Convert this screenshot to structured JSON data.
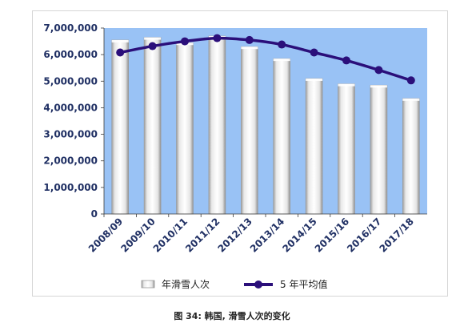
{
  "caption": "图 34: 韩国, 滑雪人次的变化",
  "colors": {
    "plot_background": "#99c2f5",
    "bar": "#f2f2f2",
    "bar_edge": "#9a9a9a",
    "line": "#2b0f7a"
  },
  "chart_data": {
    "type": "bar",
    "categories": [
      "2008/09",
      "2009/10",
      "2010/11",
      "2011/12",
      "2012/13",
      "2013/14",
      "2014/15",
      "2015/16",
      "2016/17",
      "2017/18"
    ],
    "ylim": [
      0,
      7000000
    ],
    "yticks": [
      0,
      1000000,
      2000000,
      3000000,
      4000000,
      5000000,
      6000000,
      7000000
    ],
    "ytick_labels": [
      "0",
      "1,000,000",
      "2,000,000",
      "3,000,000",
      "4,000,000",
      "5,000,000",
      "6,000,000",
      "7,000,000"
    ],
    "series": [
      {
        "name": "年滑雪人次",
        "type": "bar",
        "values": [
          6550000,
          6650000,
          6450000,
          6700000,
          6300000,
          5850000,
          5100000,
          4900000,
          4850000,
          4350000
        ]
      },
      {
        "name": "5 年平均值",
        "type": "line",
        "values": [
          6080000,
          6320000,
          6500000,
          6620000,
          6550000,
          6380000,
          6080000,
          5780000,
          5420000,
          5030000
        ]
      }
    ],
    "legend_position": "bottom",
    "grid": false
  }
}
